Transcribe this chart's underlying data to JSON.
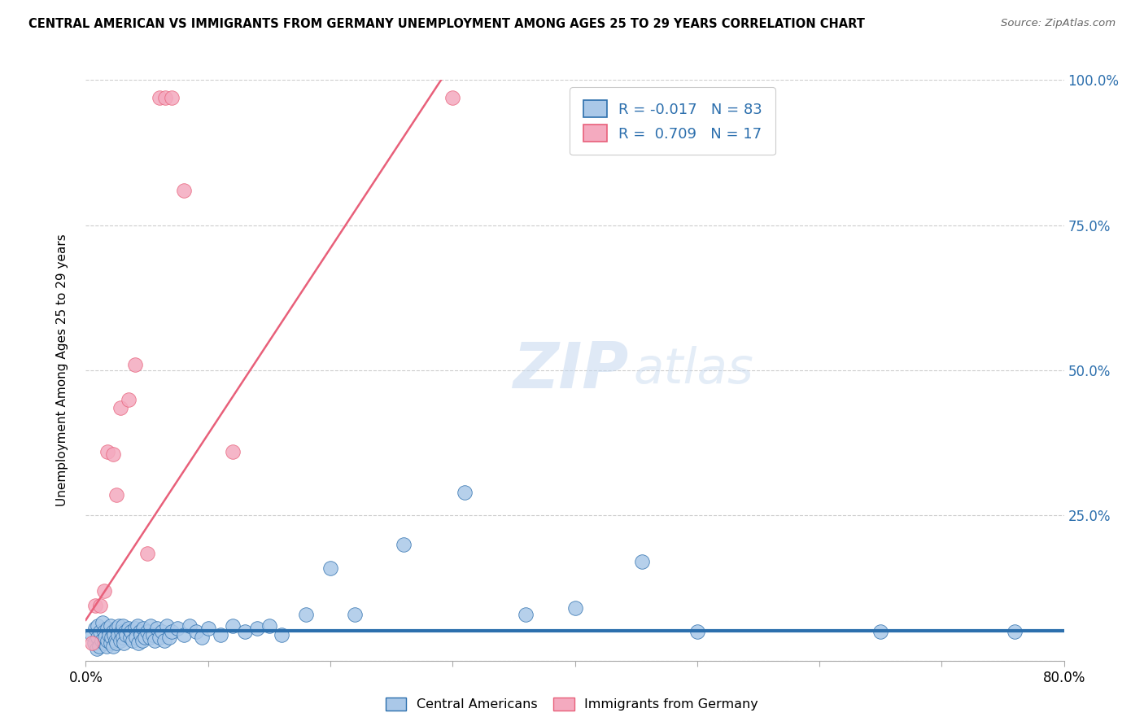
{
  "title": "CENTRAL AMERICAN VS IMMIGRANTS FROM GERMANY UNEMPLOYMENT AMONG AGES 25 TO 29 YEARS CORRELATION CHART",
  "source": "Source: ZipAtlas.com",
  "ylabel": "Unemployment Among Ages 25 to 29 years",
  "xlim": [
    0.0,
    0.8
  ],
  "ylim": [
    0.0,
    1.0
  ],
  "blue_R": -0.017,
  "blue_N": 83,
  "pink_R": 0.709,
  "pink_N": 17,
  "blue_color": "#aac8e8",
  "pink_color": "#f4aabf",
  "blue_line_color": "#2c6fad",
  "pink_line_color": "#e8607a",
  "watermark_text": "ZIPatlas",
  "blue_dots_x": [
    0.005,
    0.007,
    0.008,
    0.009,
    0.01,
    0.01,
    0.011,
    0.012,
    0.013,
    0.014,
    0.015,
    0.015,
    0.016,
    0.017,
    0.018,
    0.018,
    0.019,
    0.02,
    0.02,
    0.021,
    0.022,
    0.022,
    0.023,
    0.024,
    0.025,
    0.025,
    0.026,
    0.027,
    0.028,
    0.029,
    0.03,
    0.03,
    0.031,
    0.032,
    0.033,
    0.035,
    0.036,
    0.037,
    0.038,
    0.04,
    0.041,
    0.042,
    0.043,
    0.044,
    0.045,
    0.046,
    0.047,
    0.048,
    0.05,
    0.052,
    0.053,
    0.055,
    0.056,
    0.058,
    0.06,
    0.062,
    0.064,
    0.066,
    0.068,
    0.07,
    0.075,
    0.08,
    0.085,
    0.09,
    0.095,
    0.1,
    0.11,
    0.12,
    0.13,
    0.14,
    0.15,
    0.16,
    0.18,
    0.2,
    0.22,
    0.26,
    0.31,
    0.36,
    0.4,
    0.455,
    0.5,
    0.65,
    0.76
  ],
  "blue_dots_y": [
    0.045,
    0.03,
    0.055,
    0.02,
    0.04,
    0.06,
    0.025,
    0.05,
    0.035,
    0.065,
    0.03,
    0.05,
    0.04,
    0.025,
    0.055,
    0.035,
    0.045,
    0.03,
    0.06,
    0.04,
    0.05,
    0.025,
    0.045,
    0.035,
    0.055,
    0.03,
    0.045,
    0.06,
    0.035,
    0.05,
    0.04,
    0.06,
    0.03,
    0.05,
    0.045,
    0.055,
    0.04,
    0.05,
    0.035,
    0.055,
    0.04,
    0.06,
    0.03,
    0.05,
    0.045,
    0.035,
    0.055,
    0.04,
    0.05,
    0.04,
    0.06,
    0.045,
    0.035,
    0.055,
    0.04,
    0.05,
    0.035,
    0.06,
    0.04,
    0.05,
    0.055,
    0.045,
    0.06,
    0.05,
    0.04,
    0.055,
    0.045,
    0.06,
    0.05,
    0.055,
    0.06,
    0.045,
    0.08,
    0.16,
    0.08,
    0.2,
    0.29,
    0.08,
    0.09,
    0.17,
    0.05,
    0.05,
    0.05
  ],
  "pink_dots_x": [
    0.005,
    0.008,
    0.012,
    0.015,
    0.018,
    0.022,
    0.025,
    0.028,
    0.035,
    0.04,
    0.05,
    0.06,
    0.065,
    0.07,
    0.08,
    0.12,
    0.3
  ],
  "pink_dots_y": [
    0.03,
    0.095,
    0.095,
    0.12,
    0.36,
    0.355,
    0.285,
    0.435,
    0.45,
    0.51,
    0.185,
    0.97,
    0.97,
    0.97,
    0.81,
    0.36,
    0.97
  ],
  "pink_line_slope": 3.2,
  "pink_line_intercept": 0.07,
  "blue_line_y": 0.052
}
